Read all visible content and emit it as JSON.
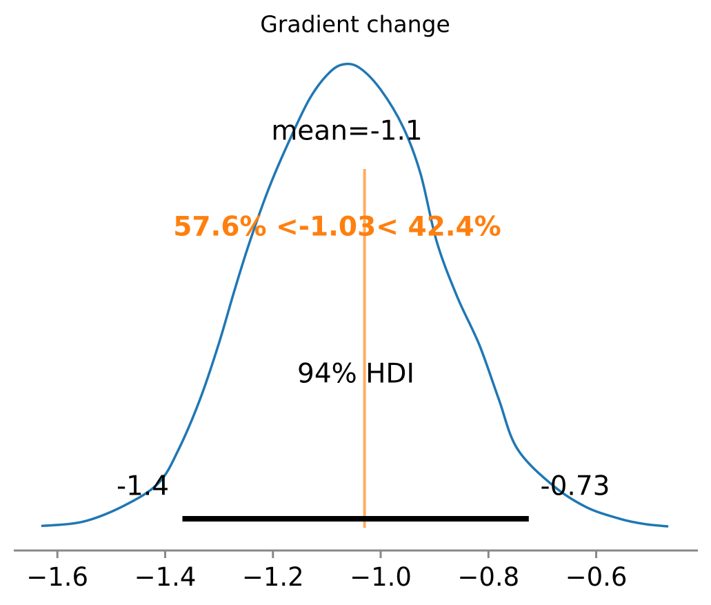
{
  "chart_data": {
    "type": "kde-posterior",
    "title": "Gradient change",
    "mean": -1.1,
    "mean_label": "mean=-1.1",
    "ref_val": -1.03,
    "ref_val_label": "57.6% <-1.03< 42.4%",
    "pct_below_ref": 57.6,
    "pct_above_ref": 42.4,
    "hdi": {
      "prob": 0.94,
      "prob_label": "94% HDI",
      "lower": -1.368,
      "upper": -0.725,
      "lower_label": "-1.4",
      "upper_label": "-0.73"
    },
    "xticks": [
      -1.6,
      -1.4,
      -1.2,
      -1.0,
      -0.8,
      -0.6
    ],
    "xtick_labels": [
      "−1.6",
      "−1.4",
      "−1.2",
      "−1.0",
      "−0.8",
      "−0.6"
    ],
    "xlim": [
      -1.71,
      -0.39
    ],
    "grid": false,
    "legend": false,
    "curve": [
      [
        -1.628,
        0.001
      ],
      [
        -1.553,
        0.01
      ],
      [
        -1.476,
        0.045
      ],
      [
        -1.412,
        0.094
      ],
      [
        -1.374,
        0.169
      ],
      [
        -1.335,
        0.276
      ],
      [
        -1.301,
        0.393
      ],
      [
        -1.271,
        0.512
      ],
      [
        -1.243,
        0.616
      ],
      [
        -1.207,
        0.733
      ],
      [
        -1.169,
        0.836
      ],
      [
        -1.131,
        0.927
      ],
      [
        -1.095,
        0.982
      ],
      [
        -1.067,
        1.0
      ],
      [
        -1.038,
        0.991
      ],
      [
        -1.0,
        0.945
      ],
      [
        -0.958,
        0.863
      ],
      [
        -0.926,
        0.763
      ],
      [
        -0.896,
        0.616
      ],
      [
        -0.858,
        0.497
      ],
      [
        -0.817,
        0.393
      ],
      [
        -0.781,
        0.276
      ],
      [
        -0.747,
        0.169
      ],
      [
        -0.683,
        0.091
      ],
      [
        -0.619,
        0.042
      ],
      [
        -0.555,
        0.016
      ],
      [
        -0.51,
        0.005
      ],
      [
        -0.468,
        0.0
      ]
    ],
    "colors": {
      "curve": "#1f77b4",
      "ref_line": "#ff7f0e",
      "ref_text": "#ff7f0e",
      "hdi_bar": "#000000",
      "axis": "#888888",
      "text": "#000000"
    }
  }
}
